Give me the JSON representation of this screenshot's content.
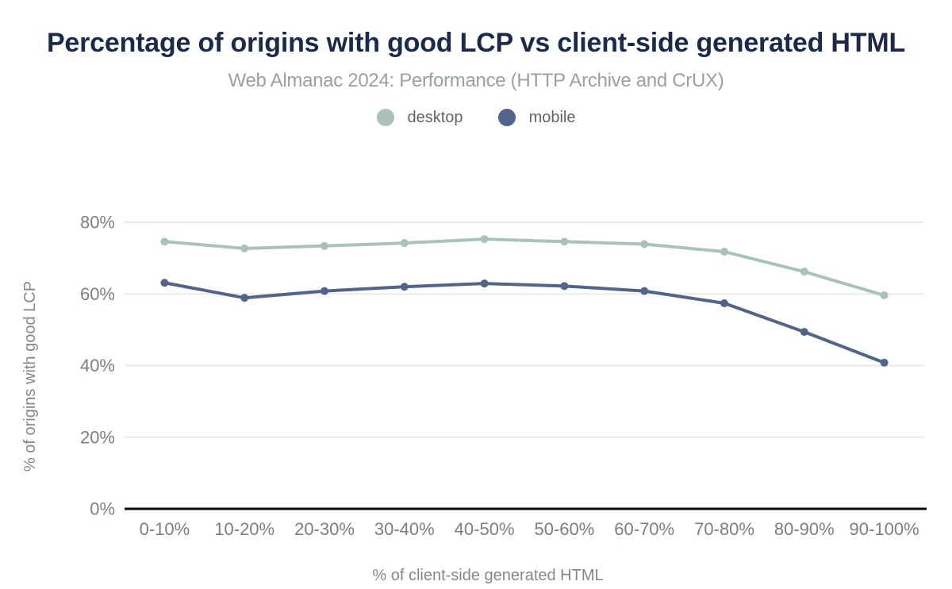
{
  "chart_data": {
    "type": "line",
    "title": "Percentage of origins with good LCP vs client-side generated HTML",
    "subtitle": "Web Almanac 2024: Performance (HTTP Archive and CrUX)",
    "xlabel": "% of client-side generated HTML",
    "ylabel": "% of origins with good LCP",
    "categories": [
      "0-10%",
      "10-20%",
      "20-30%",
      "30-40%",
      "40-50%",
      "50-60%",
      "60-70%",
      "70-80%",
      "80-90%",
      "90-100%"
    ],
    "series": [
      {
        "name": "desktop",
        "color": "#a9c4b6",
        "values": [
          74.6,
          72.7,
          73.4,
          74.2,
          75.3,
          74.6,
          73.9,
          71.8,
          66.2,
          59.6
        ]
      },
      {
        "name": "mobile",
        "color": "#53648a",
        "values": [
          63.1,
          58.9,
          60.8,
          62.0,
          62.9,
          62.2,
          60.8,
          57.4,
          49.4,
          40.8
        ]
      }
    ],
    "ylim": [
      0,
      80
    ],
    "yticks": [
      {
        "value": 0,
        "label": "0%"
      },
      {
        "value": 20,
        "label": "20%"
      },
      {
        "value": 40,
        "label": "40%"
      },
      {
        "value": 60,
        "label": "60%"
      },
      {
        "value": 80,
        "label": "80%"
      }
    ],
    "grid": true,
    "legend_position": "top"
  },
  "colors": {
    "title_text": "#1b2a49",
    "subtitle_text": "#9aa0a5",
    "tick_text": "#7a7f84",
    "axis_title_text": "#83888d",
    "gridline": "#ebebeb",
    "axis_line": "#0a0a0a",
    "legend_text": "#5f646b"
  }
}
